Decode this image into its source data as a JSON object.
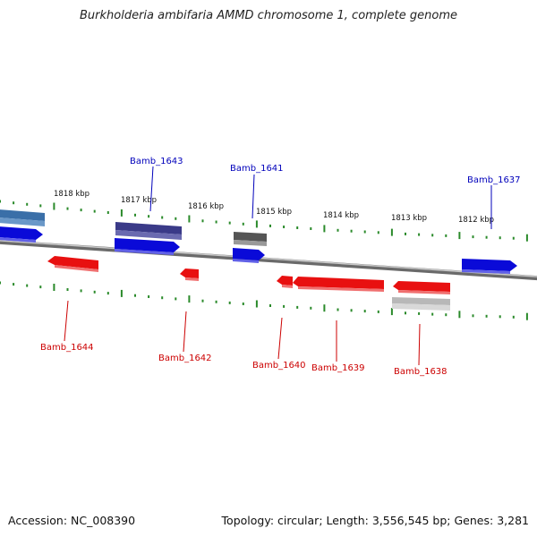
{
  "title": "Burkholderia ambifaria AMMD chromosome 1, complete genome",
  "footer": {
    "accession_label": "Accession:",
    "accession": "NC_008390",
    "topology_label": "Topology:",
    "topology": "circular",
    "length_label": "Length:",
    "length": "3,556,545 bp",
    "genes_label": "Genes:",
    "genes": "3,281"
  },
  "colors": {
    "forward_cds": "#1010ee",
    "reverse_cds": "#ee1010",
    "forward_label": "#0000bb",
    "reverse_label": "#cc0000",
    "tick": "#2a8a2a",
    "backbone": "#888888"
  },
  "kbp_ticks": [
    "1818 kbp",
    "1817 kbp",
    "1816 kbp",
    "1815 kbp",
    "1814 kbp",
    "1813 kbp",
    "1812 kbp"
  ],
  "genes_labeled": {
    "forward": [
      "Bamb_1643",
      "Bamb_1641",
      "Bamb_1637"
    ],
    "reverse": [
      "Bamb_1644",
      "Bamb_1642",
      "Bamb_1640",
      "Bamb_1639",
      "Bamb_1638"
    ]
  }
}
